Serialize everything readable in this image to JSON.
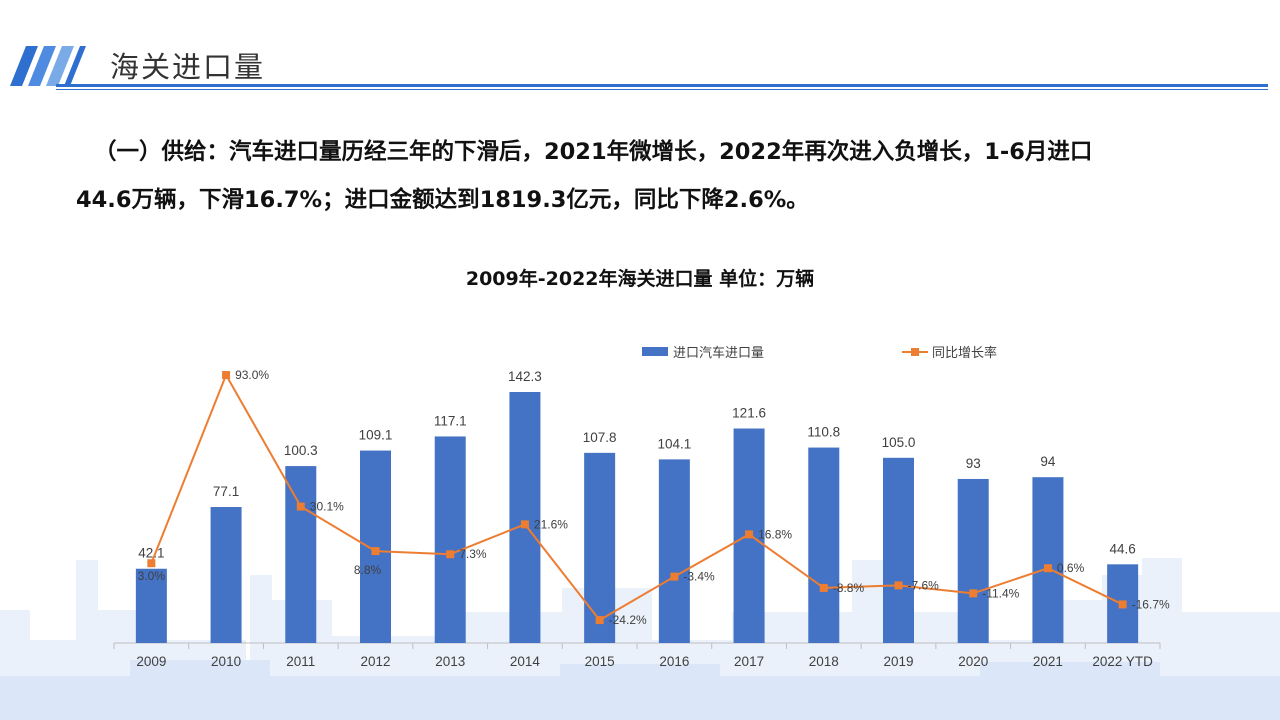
{
  "header": {
    "title": "海关进口量"
  },
  "summary": {
    "line1": "（一）供给：汽车进口量历经三年的下滑后，2021年微增长，2022年再次进入负增长，1-6月进口",
    "line2": "44.6万辆，下滑16.7%；进口金额达到1819.3亿元，同比下降2.6%。"
  },
  "colors": {
    "accent": "#2f6fd0",
    "bar": "#4472c4",
    "line": "#ed7d31",
    "bg_deco": "#e8f0fb"
  },
  "chart_data": {
    "type": "bar",
    "title": "2009年-2022年海关进口量  单位：万辆",
    "categories": [
      "2009",
      "2010",
      "2011",
      "2012",
      "2013",
      "2014",
      "2015",
      "2016",
      "2017",
      "2018",
      "2019",
      "2020",
      "2021",
      "2022 YTD"
    ],
    "series": [
      {
        "name": "进口汽车进口量",
        "type": "bar",
        "values": [
          42.1,
          77.1,
          100.3,
          109.1,
          117.1,
          142.3,
          107.8,
          104.1,
          121.6,
          110.8,
          105.0,
          93,
          94,
          44.6
        ],
        "labels": [
          "42.1",
          "77.1",
          "100.3",
          "109.1",
          "117.1",
          "142.3",
          "107.8",
          "104.1",
          "121.6",
          "110.8",
          "105.0",
          "93",
          "94",
          "44.6"
        ]
      },
      {
        "name": "同比增长率",
        "type": "line",
        "values": [
          3.0,
          93.0,
          30.1,
          8.8,
          7.3,
          21.6,
          -24.2,
          -3.4,
          16.8,
          -8.8,
          -7.6,
          -11.4,
          0.6,
          -16.7
        ],
        "labels": [
          "3.0%",
          "93.0%",
          "30.1%",
          "8.8%",
          "7.3%",
          "21.6%",
          "-24.2%",
          "-3.4%",
          "16.8%",
          "-8.8%",
          "-7.6%",
          "-11.4%",
          "0.6%",
          "-16.7%"
        ]
      }
    ],
    "ylim": [
      0,
      150
    ],
    "y2lim": [
      -40,
      100
    ],
    "grid": false,
    "legend": "top"
  }
}
